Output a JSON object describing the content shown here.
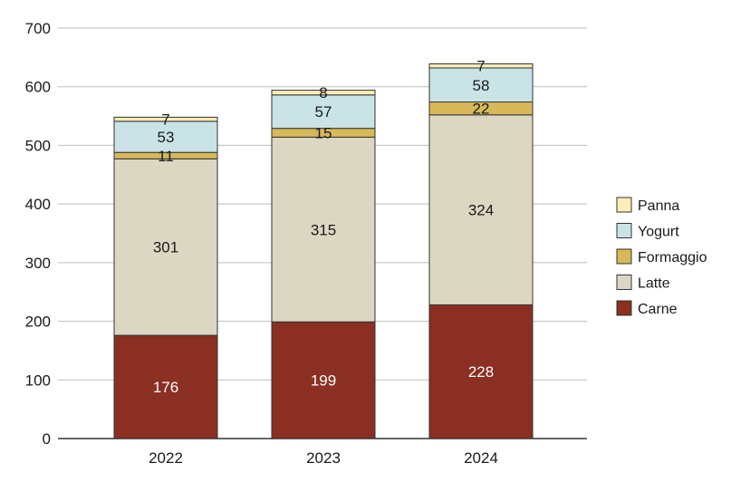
{
  "chart_data": {
    "type": "bar",
    "stacked": true,
    "title": "",
    "xlabel": "",
    "ylabel": "",
    "ylim": [
      0,
      700
    ],
    "yticks": [
      0,
      100,
      200,
      300,
      400,
      500,
      600,
      700
    ],
    "grid": true,
    "legend_position": "right",
    "categories": [
      "2022",
      "2023",
      "2024"
    ],
    "series": [
      {
        "name": "Carne",
        "color": "#8a2f22",
        "label_color": "#ffffff",
        "values": [
          176,
          199,
          228
        ]
      },
      {
        "name": "Latte",
        "color": "#dcd7c2",
        "label_color": "#1a1a1a",
        "values": [
          301,
          315,
          324
        ]
      },
      {
        "name": "Formaggio",
        "color": "#d7b95a",
        "label_color": "#1a1a1a",
        "values": [
          11,
          15,
          22
        ]
      },
      {
        "name": "Yogurt",
        "color": "#c9e3e6",
        "label_color": "#1a1a1a",
        "values": [
          53,
          57,
          58
        ]
      },
      {
        "name": "Panna",
        "color": "#fbecb8",
        "label_color": "#1a1a1a",
        "values": [
          7,
          8,
          7
        ]
      }
    ],
    "legend_order": [
      "Panna",
      "Yogurt",
      "Formaggio",
      "Latte",
      "Carne"
    ]
  }
}
